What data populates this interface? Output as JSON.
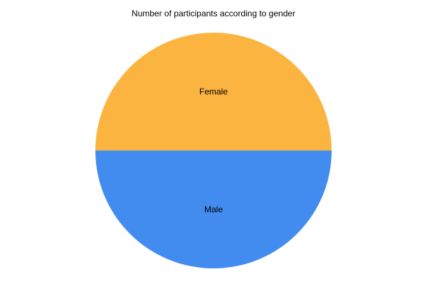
{
  "chart_data": {
    "type": "pie",
    "title": "Number of participants according to gender",
    "slices": [
      {
        "label": "Female",
        "value": 50,
        "color": "#fbb440"
      },
      {
        "label": "Male",
        "value": 50,
        "color": "#438cef"
      }
    ]
  }
}
